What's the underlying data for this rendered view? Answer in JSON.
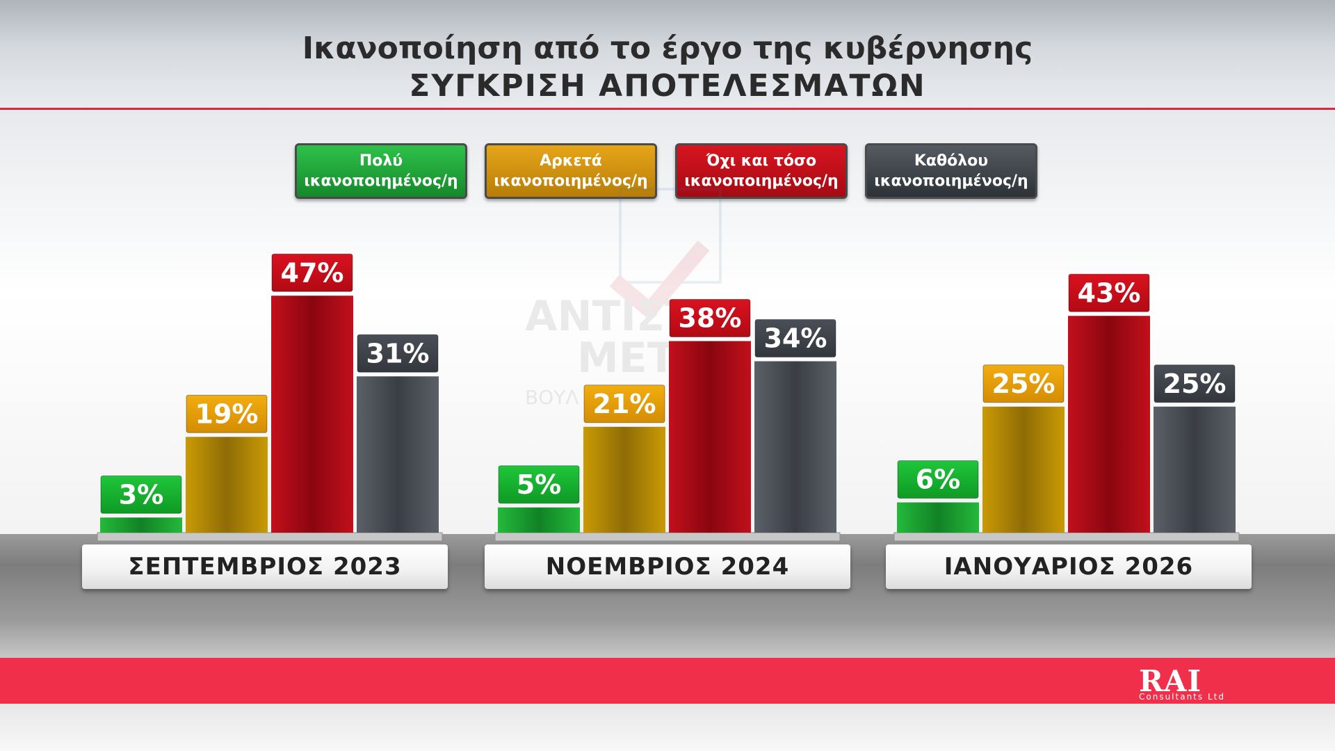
{
  "header": {
    "title": "Ικανοποίηση από το έργο της κυβέρνησης",
    "subtitle": "ΣΥΓΚΡΙΣΗ ΑΠΟΤΕΛΕΣΜΑΤΩΝ"
  },
  "watermark": {
    "line1": "ΑΝΤΙΣΤ",
    "line2": "ΜΕΤΡ",
    "line3": "ΒΟΥΛ"
  },
  "logo": {
    "name": "RAI",
    "sub": "Consultants Ltd"
  },
  "colors": {
    "very": "#1fa532",
    "quite": "#d8a400",
    "not_so": "#c40e1a",
    "not_at_all": "#4a4f57",
    "accent_red": "#f0304a"
  },
  "chart_data": {
    "type": "bar",
    "title": "Ικανοποίηση από το έργο της κυβέρνησης",
    "subtitle": "ΣΥΓΚΡΙΣΗ ΑΠΟΤΕΛΕΣΜΑΤΩΝ",
    "categories": [
      "ΣΕΠΤΕΜΒΡΙΟΣ 2023",
      "ΝΟΕΜΒΡΙΟΣ 2024",
      "ΙΑΝΟΥΑΡΙΟΣ 2026"
    ],
    "unit": "%",
    "legend_position": "top-center",
    "grid": false,
    "ylim": [
      0,
      50
    ],
    "series": [
      {
        "name": "Πολύ\nικανοποιημένος/η",
        "color": "#1fa532",
        "values": [
          3,
          5,
          6
        ],
        "labels": [
          "3%",
          "5%",
          "6%"
        ]
      },
      {
        "name": "Αρκετά\nικανοποιημένος/η",
        "color": "#d8a400",
        "values": [
          19,
          21,
          25
        ],
        "labels": [
          "19%",
          "21%",
          "25%"
        ]
      },
      {
        "name": "Όχι και τόσο\nικανοποιημένος/η",
        "color": "#c40e1a",
        "values": [
          47,
          38,
          43
        ],
        "labels": [
          "47%",
          "38%",
          "43%"
        ]
      },
      {
        "name": "Καθόλου\nικανοποιημένος/η",
        "color": "#4a4f57",
        "values": [
          31,
          34,
          25
        ],
        "labels": [
          "31%",
          "34%",
          "25%"
        ]
      }
    ]
  }
}
